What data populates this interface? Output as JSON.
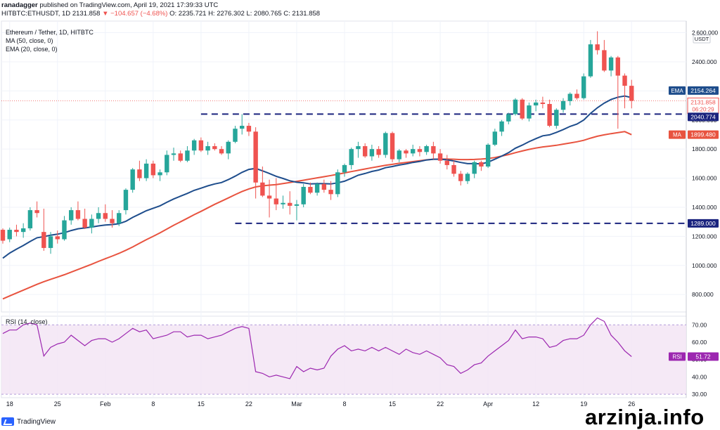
{
  "header": {
    "line1_user": "ranadagger",
    "line1_rest": "published on TradingView.com, April 19, 2021 17:39:33 UTC",
    "symbol": "HITBTC:ETHUSDT, 1D",
    "last": "2131.858",
    "change": "▼ −104.657 (−4.68%)",
    "open": "O: 2235.721",
    "high": "H: 2276.302",
    "low": "L: 2080.765",
    "close": "C: 2131.858"
  },
  "legend": {
    "title": "Ethereum / Tether, 1D, HITBTC",
    "ma": "MA (50, close, 0)",
    "ema": "EMA (20, close, 0)",
    "rsi": "RSI (14, close)"
  },
  "footer": {
    "logo": "TradingView",
    "watermark": "arzinja.info"
  },
  "colors": {
    "up": "#26a69a",
    "down": "#ef5350",
    "ema": "#1e4d8c",
    "ma": "#e8533f",
    "rsi": "#9c27b0",
    "level": "#1a237e"
  },
  "chart_data": {
    "type": "candlestick",
    "x_tick_labels": [
      "18",
      "25",
      "Feb",
      "8",
      "15",
      "22",
      "Mar",
      "8",
      "15",
      "22",
      "Apr",
      "12",
      "19",
      "26"
    ],
    "x_tick_index": [
      1,
      8,
      15,
      22,
      29,
      36,
      43,
      50,
      57,
      64,
      71,
      78,
      85,
      92
    ],
    "price_axis": {
      "ticks": [
        800,
        1000,
        1200,
        1400,
        1600,
        1800,
        2000,
        2200,
        2400,
        2600
      ],
      "tick_labels": [
        "800.000",
        "1000.000",
        "1200.000",
        "1400.000",
        "1600.000",
        "1800.000",
        "2000.000",
        "2200.000",
        "2400.000",
        "2 600.000"
      ],
      "ylim": [
        680,
        2680
      ],
      "currency": "USDT"
    },
    "rsi_axis": {
      "ticks": [
        30,
        40,
        50,
        60,
        70
      ],
      "tick_labels": [
        "30.00",
        "40.00",
        "50.00",
        "60.00",
        "70.00"
      ],
      "ylim": [
        28,
        75
      ],
      "band": [
        30,
        70
      ]
    },
    "levels": [
      {
        "value": 2040.774,
        "label": "2040.774",
        "from_index": 29
      },
      {
        "value": 1289.0,
        "label": "1289.000",
        "from_index": 34
      }
    ],
    "badges": {
      "ema": {
        "name": "EMA",
        "value": "2154.264"
      },
      "price": {
        "value": "2131.858",
        "countdown": "06:20:29"
      },
      "ma": {
        "name": "MA",
        "value": "1899.480"
      },
      "rsi": {
        "name": "RSI",
        "value": "51.72"
      }
    },
    "candles": [
      [
        1245,
        1255,
        1150,
        1170
      ],
      [
        1180,
        1260,
        1160,
        1245
      ],
      [
        1245,
        1280,
        1200,
        1230
      ],
      [
        1230,
        1290,
        1190,
        1255
      ],
      [
        1255,
        1400,
        1240,
        1380
      ],
      [
        1380,
        1440,
        1330,
        1360
      ],
      [
        1230,
        1390,
        1100,
        1120
      ],
      [
        1120,
        1230,
        1080,
        1200
      ],
      [
        1200,
        1240,
        1150,
        1180
      ],
      [
        1180,
        1340,
        1170,
        1310
      ],
      [
        1310,
        1400,
        1280,
        1380
      ],
      [
        1380,
        1440,
        1310,
        1320
      ],
      [
        1320,
        1390,
        1250,
        1260
      ],
      [
        1260,
        1350,
        1220,
        1320
      ],
      [
        1320,
        1400,
        1290,
        1360
      ],
      [
        1360,
        1420,
        1300,
        1320
      ],
      [
        1320,
        1380,
        1260,
        1290
      ],
      [
        1290,
        1380,
        1270,
        1360
      ],
      [
        1380,
        1530,
        1350,
        1520
      ],
      [
        1520,
        1670,
        1500,
        1660
      ],
      [
        1660,
        1720,
        1580,
        1600
      ],
      [
        1600,
        1730,
        1580,
        1700
      ],
      [
        1700,
        1720,
        1600,
        1620
      ],
      [
        1620,
        1660,
        1580,
        1640
      ],
      [
        1640,
        1790,
        1620,
        1760
      ],
      [
        1760,
        1810,
        1720,
        1770
      ],
      [
        1770,
        1790,
        1710,
        1720
      ],
      [
        1720,
        1820,
        1710,
        1790
      ],
      [
        1790,
        1870,
        1760,
        1860
      ],
      [
        1860,
        1880,
        1780,
        1790
      ],
      [
        1790,
        1850,
        1760,
        1820
      ],
      [
        1820,
        1840,
        1790,
        1800
      ],
      [
        1800,
        1820,
        1760,
        1770
      ],
      [
        1770,
        1860,
        1730,
        1850
      ],
      [
        1850,
        1960,
        1840,
        1940
      ],
      [
        1940,
        2040,
        1900,
        1960
      ],
      [
        1960,
        1980,
        1890,
        1920
      ],
      [
        1920,
        1950,
        1460,
        1570
      ],
      [
        1570,
        1680,
        1470,
        1480
      ],
      [
        1480,
        1590,
        1330,
        1460
      ],
      [
        1460,
        1600,
        1380,
        1420
      ],
      [
        1420,
        1480,
        1390,
        1430
      ],
      [
        1430,
        1510,
        1350,
        1410
      ],
      [
        1410,
        1450,
        1310,
        1420
      ],
      [
        1420,
        1560,
        1400,
        1540
      ],
      [
        1540,
        1570,
        1490,
        1500
      ],
      [
        1500,
        1570,
        1480,
        1560
      ],
      [
        1560,
        1590,
        1500,
        1520
      ],
      [
        1520,
        1580,
        1450,
        1490
      ],
      [
        1490,
        1660,
        1470,
        1640
      ],
      [
        1640,
        1700,
        1610,
        1690
      ],
      [
        1690,
        1810,
        1660,
        1800
      ],
      [
        1800,
        1850,
        1740,
        1820
      ],
      [
        1820,
        1840,
        1740,
        1750
      ],
      [
        1750,
        1830,
        1720,
        1800
      ],
      [
        1800,
        1820,
        1740,
        1760
      ],
      [
        1760,
        1920,
        1740,
        1910
      ],
      [
        1910,
        1920,
        1710,
        1730
      ],
      [
        1730,
        1800,
        1710,
        1790
      ],
      [
        1790,
        1800,
        1740,
        1770
      ],
      [
        1770,
        1830,
        1750,
        1800
      ],
      [
        1800,
        1820,
        1750,
        1780
      ],
      [
        1780,
        1830,
        1760,
        1820
      ],
      [
        1820,
        1850,
        1730,
        1770
      ],
      [
        1770,
        1800,
        1700,
        1720
      ],
      [
        1720,
        1760,
        1660,
        1690
      ],
      [
        1690,
        1720,
        1610,
        1630
      ],
      [
        1630,
        1650,
        1550,
        1580
      ],
      [
        1580,
        1640,
        1560,
        1630
      ],
      [
        1630,
        1720,
        1600,
        1710
      ],
      [
        1710,
        1720,
        1650,
        1680
      ],
      [
        1680,
        1840,
        1670,
        1830
      ],
      [
        1830,
        1940,
        1820,
        1920
      ],
      [
        1920,
        2000,
        1890,
        1990
      ],
      [
        1990,
        2050,
        1970,
        2040
      ],
      [
        2040,
        2150,
        2030,
        2140
      ],
      [
        2140,
        2150,
        2000,
        2010
      ],
      [
        2010,
        2120,
        1990,
        2100
      ],
      [
        2100,
        2140,
        2060,
        2120
      ],
      [
        2120,
        2160,
        2080,
        2110
      ],
      [
        2110,
        2140,
        1950,
        1960
      ],
      [
        1960,
        2080,
        1940,
        2070
      ],
      [
        2070,
        2150,
        2050,
        2130
      ],
      [
        2130,
        2190,
        2100,
        2180
      ],
      [
        2180,
        2210,
        2140,
        2150
      ],
      [
        2150,
        2320,
        2140,
        2300
      ],
      [
        2300,
        2550,
        2290,
        2520
      ],
      [
        2520,
        2610,
        2450,
        2480
      ],
      [
        2480,
        2550,
        2330,
        2340
      ],
      [
        2340,
        2440,
        2300,
        2430
      ],
      [
        2430,
        2440,
        1940,
        2305
      ],
      [
        2305,
        2320,
        2080,
        2235
      ],
      [
        2235,
        2276,
        2080,
        2131.858
      ]
    ],
    "ema20": [
      1050,
      1085,
      1112,
      1137,
      1165,
      1190,
      1198,
      1208,
      1215,
      1225,
      1240,
      1252,
      1258,
      1264,
      1272,
      1278,
      1281,
      1287,
      1303,
      1330,
      1353,
      1376,
      1393,
      1410,
      1434,
      1457,
      1476,
      1495,
      1516,
      1531,
      1547,
      1560,
      1570,
      1590,
      1614,
      1640,
      1660,
      1667,
      1650,
      1632,
      1613,
      1598,
      1582,
      1572,
      1568,
      1560,
      1562,
      1562,
      1560,
      1568,
      1579,
      1599,
      1620,
      1632,
      1646,
      1656,
      1672,
      1680,
      1690,
      1698,
      1708,
      1715,
      1725,
      1730,
      1730,
      1726,
      1718,
      1708,
      1700,
      1700,
      1698,
      1710,
      1730,
      1752,
      1775,
      1806,
      1827,
      1851,
      1872,
      1891,
      1898,
      1915,
      1934,
      1956,
      1972,
      2000,
      2045,
      2084,
      2116,
      2141,
      2157,
      2165,
      2154
    ],
    "ma50": [
      770,
      790,
      810,
      830,
      850,
      870,
      888,
      904,
      920,
      936,
      954,
      972,
      990,
      1008,
      1028,
      1046,
      1064,
      1083,
      1104,
      1127,
      1152,
      1177,
      1200,
      1224,
      1250,
      1276,
      1300,
      1324,
      1349,
      1372,
      1396,
      1420,
      1442,
      1464,
      1487,
      1508,
      1526,
      1540,
      1547,
      1552,
      1556,
      1563,
      1570,
      1578,
      1586,
      1594,
      1602,
      1610,
      1618,
      1627,
      1636,
      1645,
      1654,
      1663,
      1672,
      1680,
      1688,
      1695,
      1702,
      1708,
      1714,
      1720,
      1726,
      1730,
      1731,
      1731,
      1730,
      1728,
      1728,
      1729,
      1731,
      1735,
      1742,
      1752,
      1762,
      1775,
      1787,
      1798,
      1807,
      1815,
      1820,
      1826,
      1834,
      1842,
      1850,
      1860,
      1875,
      1888,
      1898,
      1906,
      1913,
      1920,
      1899
    ],
    "rsi": [
      65,
      67,
      67,
      70,
      71,
      70,
      52,
      57,
      59,
      60,
      64,
      61,
      58,
      61,
      62,
      62,
      60,
      62,
      65,
      68,
      66,
      67,
      62,
      63,
      64,
      66,
      66,
      63,
      64,
      64,
      62,
      63,
      64,
      66,
      68,
      69,
      68,
      43,
      42,
      40,
      41,
      40,
      39,
      46,
      43,
      45,
      44,
      45,
      52,
      56,
      58,
      55,
      56,
      55,
      57,
      55,
      57,
      55,
      53,
      56,
      54,
      53,
      55,
      53,
      51,
      47,
      46,
      42,
      44,
      47,
      48,
      52,
      55,
      58,
      61,
      67,
      62,
      63,
      63,
      62,
      57,
      58,
      61,
      62,
      62,
      64,
      70,
      74,
      72,
      64,
      60,
      55,
      51.72
    ]
  }
}
